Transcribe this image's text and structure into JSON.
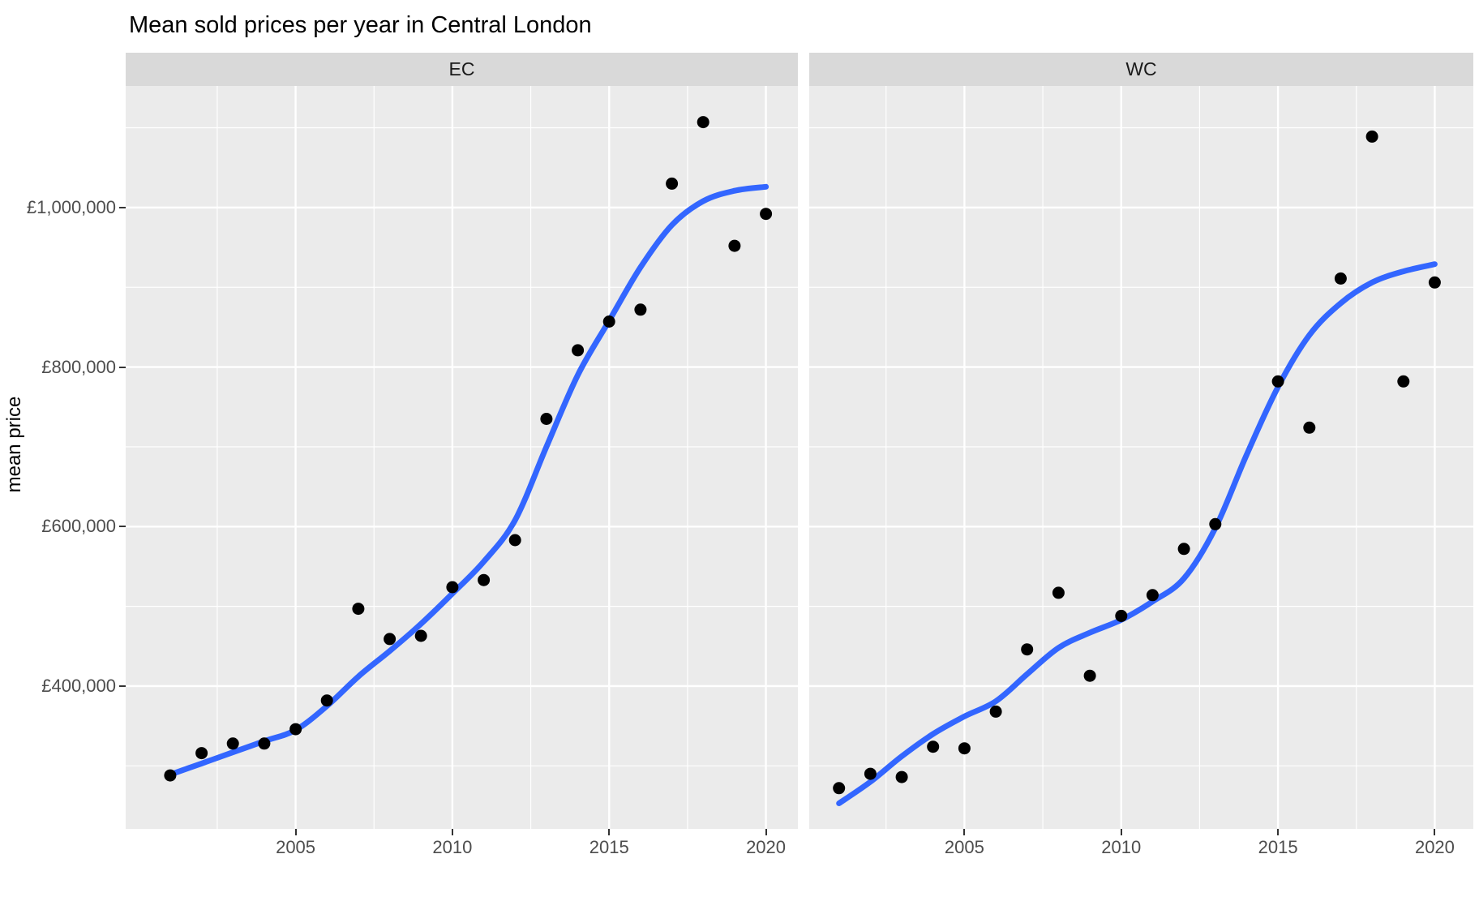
{
  "title": "Mean sold prices per year in Central London",
  "y_axis_title": "mean price",
  "colors": {
    "smooth_line": "#3366FF",
    "point": "#000000",
    "panel_bg": "#EBEBEB",
    "strip_bg": "#D9D9D9",
    "gridline": "#FFFFFF",
    "axis_text": "#4D4D4D",
    "tick_mark": "#333333",
    "title_text": "#000000"
  },
  "chart_data": {
    "type": "scatter",
    "title": "Mean sold prices per year in Central London",
    "xlabel": "",
    "ylabel": "mean price",
    "grid": "on",
    "legend": "none",
    "facet_variable_values": [
      "EC",
      "WC"
    ],
    "x_axis": {
      "tick_values": [
        2005,
        2010,
        2015,
        2020
      ],
      "tick_labels": [
        "2005",
        "2010",
        "2015",
        "2020"
      ],
      "minor_step": 2.5
    },
    "y_axis": {
      "tick_values": [
        400000,
        600000,
        800000,
        1000000
      ],
      "tick_labels": [
        "£400,000",
        "£600,000",
        "£800,000",
        "£1,000,000"
      ],
      "minor_step": 100000,
      "ylim": [
        221000,
        1152400
      ]
    },
    "facets": [
      {
        "label": "EC",
        "xlim": [
          1999.58,
          2021.02
        ],
        "points": {
          "years": [
            2001,
            2002,
            2003,
            2004,
            2005,
            2006,
            2007,
            2008,
            2009,
            2010,
            2011,
            2012,
            2013,
            2014,
            2015,
            2016,
            2017,
            2018,
            2019,
            2020
          ],
          "mean_price": [
            288000,
            316000,
            328000,
            328000,
            346000,
            382000,
            497000,
            459000,
            463000,
            524000,
            533000,
            583000,
            735000,
            821000,
            857000,
            872000,
            1030000,
            1107000,
            952000,
            992000
          ]
        },
        "smooth": {
          "years": [
            2001,
            2002,
            2003,
            2004,
            2005,
            2006,
            2007,
            2008,
            2009,
            2010,
            2011,
            2012,
            2013,
            2014,
            2015,
            2016,
            2017,
            2018,
            2019,
            2020
          ],
          "values": [
            289000,
            303000,
            317000,
            331000,
            345000,
            375000,
            412000,
            444000,
            478000,
            516000,
            556000,
            608000,
            700000,
            790000,
            858000,
            925000,
            978000,
            1008000,
            1021000,
            1026000
          ]
        }
      },
      {
        "label": "WC",
        "xlim": [
          2000.05,
          2021.23
        ],
        "points": {
          "years": [
            2001,
            2002,
            2003,
            2004,
            2005,
            2006,
            2007,
            2008,
            2009,
            2010,
            2011,
            2012,
            2013,
            2015,
            2016,
            2017,
            2018,
            2019,
            2020
          ],
          "mean_price": [
            272000,
            290000,
            286000,
            324000,
            322000,
            368000,
            446000,
            517000,
            413000,
            488000,
            514000,
            572000,
            603000,
            782000,
            724000,
            911000,
            1089000,
            782000,
            906000
          ]
        },
        "smooth": {
          "years": [
            2001,
            2002,
            2003,
            2004,
            2005,
            2006,
            2007,
            2008,
            2009,
            2010,
            2011,
            2012,
            2013,
            2014,
            2015,
            2016,
            2017,
            2018,
            2019,
            2020
          ],
          "values": [
            253000,
            280000,
            312000,
            340000,
            362000,
            381000,
            415000,
            448000,
            467000,
            483000,
            506000,
            535000,
            598000,
            690000,
            775000,
            840000,
            880000,
            906000,
            920000,
            929000
          ]
        }
      }
    ]
  }
}
